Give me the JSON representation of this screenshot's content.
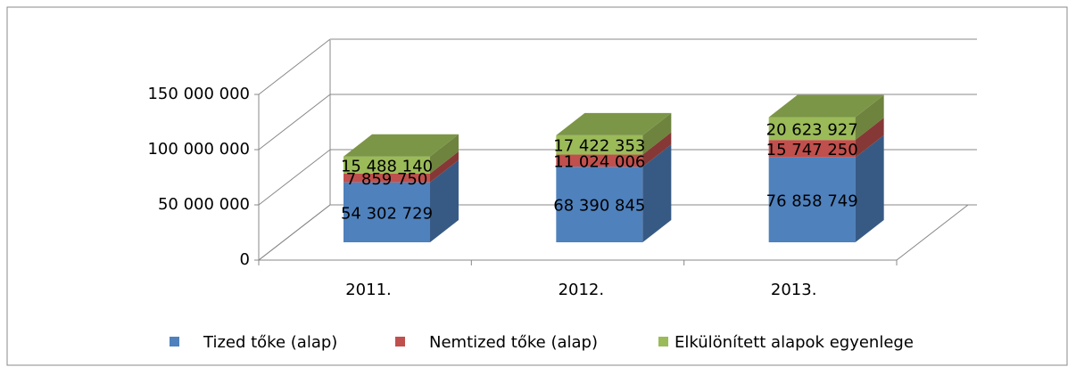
{
  "chart_data": {
    "type": "bar3d_stacked",
    "categories": [
      "2011.",
      "2012.",
      "2013."
    ],
    "series": [
      {
        "name": "Tized tőke (alap)",
        "color": "#4f81bd",
        "values": [
          54302729,
          68390845,
          76858749
        ],
        "value_labels": [
          "54 302 729",
          "68 390 845",
          "76 858 749"
        ]
      },
      {
        "name": "Nemtized tőke (alap)",
        "color": "#c0504d",
        "values": [
          7859750,
          11024006,
          15747250
        ],
        "value_labels": [
          "7 859 750",
          "11 024 006",
          "15 747 250"
        ]
      },
      {
        "name": "Elkülönített alapok egyenlege",
        "color": "#9bbb59",
        "values": [
          15488140,
          17422353,
          20623927
        ],
        "value_labels": [
          "15 488 140",
          "17 422 353",
          "20 623 927"
        ]
      }
    ],
    "ylim": [
      0,
      150000000
    ],
    "yticks": [
      {
        "value": 0,
        "label": "0"
      },
      {
        "value": 50000000,
        "label": "50 000 000"
      },
      {
        "value": 100000000,
        "label": "100 000 000"
      },
      {
        "value": 150000000,
        "label": "150 000 000"
      }
    ],
    "grid": true,
    "legend": "bottom"
  }
}
